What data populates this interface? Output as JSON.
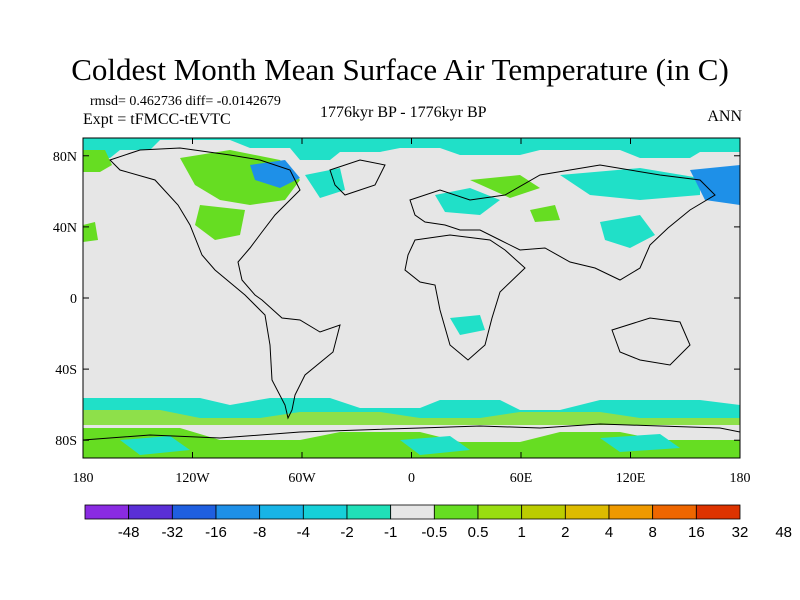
{
  "title": "Coldest Month Mean Surface Air Temperature (in C)",
  "stats": "rmsd= 0.462736 diff= -0.0142679",
  "experiment": "Expt = tFMCC-tEVTC",
  "period": "1776kyr BP - 1776kyr BP",
  "season": "ANN",
  "lat_labels": [
    "80N",
    "40N",
    "0",
    "40S",
    "80S"
  ],
  "lat_values": [
    80,
    40,
    0,
    -40,
    -80
  ],
  "lon_labels": [
    "180",
    "120W",
    "60W",
    "0",
    "60E",
    "120E",
    "180"
  ],
  "lon_values": [
    -180,
    -120,
    -60,
    0,
    60,
    120,
    180
  ],
  "colorbar": {
    "colors": [
      "#8a2be2",
      "#5a2fd6",
      "#1f5fe0",
      "#1e90e8",
      "#18b4e6",
      "#16d0d8",
      "#20e0b8",
      "#e6e6e6",
      "#66dd22",
      "#99dd11",
      "#bbcc00",
      "#ddbb00",
      "#ee9900",
      "#ee6600",
      "#dd3300"
    ],
    "labels": [
      "-48",
      "-32",
      "-16",
      "-8",
      "-4",
      "-2",
      "-1",
      "-0.5",
      "0.5",
      "1",
      "2",
      "4",
      "8",
      "16",
      "32",
      "48"
    ]
  },
  "map_colors": {
    "background": "#e6e6e6",
    "cyan": "#20e0c8",
    "light_cyan": "#18c8e0",
    "light_green": "#8ee04a",
    "green": "#66dd22",
    "blue": "#1e90e8",
    "coast": "#000000"
  }
}
